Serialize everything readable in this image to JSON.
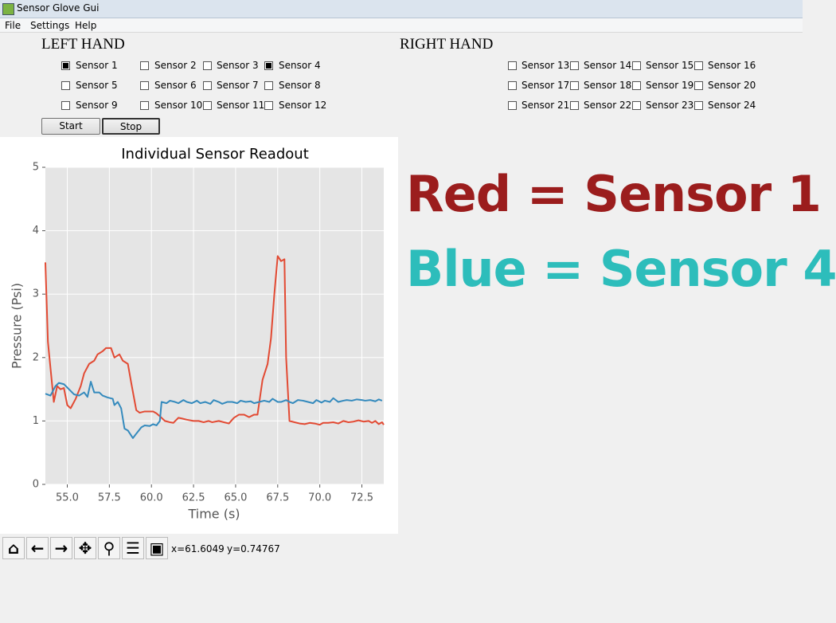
{
  "window": {
    "title": "Sensor Glove Gui"
  },
  "menu": [
    "File",
    "Settings",
    "Help"
  ],
  "left_hand": {
    "title": "LEFT HAND",
    "sensors": [
      {
        "label": "Sensor 1",
        "checked": true
      },
      {
        "label": "Sensor 2",
        "checked": false
      },
      {
        "label": "Sensor 3",
        "checked": false
      },
      {
        "label": "Sensor 4",
        "checked": true
      },
      {
        "label": "Sensor 5",
        "checked": false
      },
      {
        "label": "Sensor 6",
        "checked": false
      },
      {
        "label": "Sensor 7",
        "checked": false
      },
      {
        "label": "Sensor 8",
        "checked": false
      },
      {
        "label": "Sensor 9",
        "checked": false
      },
      {
        "label": "Sensor 10",
        "checked": false
      },
      {
        "label": "Sensor 11",
        "checked": false
      },
      {
        "label": "Sensor 12",
        "checked": false
      }
    ]
  },
  "right_hand": {
    "title": "RIGHT HAND",
    "sensors": [
      {
        "label": "Sensor 13",
        "checked": false
      },
      {
        "label": "Sensor 14",
        "checked": false
      },
      {
        "label": "Sensor 15",
        "checked": false
      },
      {
        "label": "Sensor 16",
        "checked": false
      },
      {
        "label": "Sensor 17",
        "checked": false
      },
      {
        "label": "Sensor 18",
        "checked": false
      },
      {
        "label": "Sensor 19",
        "checked": false
      },
      {
        "label": "Sensor 20",
        "checked": false
      },
      {
        "label": "Sensor 21",
        "checked": false
      },
      {
        "label": "Sensor 22",
        "checked": false
      },
      {
        "label": "Sensor 23",
        "checked": false
      },
      {
        "label": "Sensor 24",
        "checked": false
      }
    ]
  },
  "buttons": [
    "Start",
    "Stop"
  ],
  "annotations": [
    {
      "text": "Red = Sensor 1",
      "color": "#9b1d1d"
    },
    {
      "text": "Blue = Sensor 4",
      "color": "#2dbdbb"
    }
  ],
  "status": {
    "x": "x=61.6049",
    "y": "y=0.74767"
  },
  "chart_data": {
    "type": "line",
    "title": "Individual Sensor Readout",
    "x_label": "Time (s)",
    "y_label": "Pressure (Psi)",
    "xlim": [
      53.7,
      73.8
    ],
    "ylim": [
      0,
      5
    ],
    "xticks": [
      {
        "value": 55,
        "label": "55.0"
      },
      {
        "value": 57.5,
        "label": "57.5"
      },
      {
        "value": 60,
        "label": "60.0"
      },
      {
        "value": 62.5,
        "label": "62.5"
      },
      {
        "value": 65,
        "label": "65.0"
      },
      {
        "value": 67.5,
        "label": "67.5"
      },
      {
        "value": 70,
        "label": "70.0"
      },
      {
        "value": 72.5,
        "label": "72.5"
      }
    ],
    "yticks": [
      0,
      1,
      2,
      3,
      4,
      5
    ],
    "grid": true,
    "series": [
      {
        "color": "#e24a33",
        "x": [
          53.7,
          53.85,
          54.2,
          54.4,
          54.6,
          54.8,
          55.0,
          55.2,
          55.5,
          55.8,
          56.0,
          56.3,
          56.6,
          56.8,
          57.1,
          57.3,
          57.6,
          57.8,
          58.1,
          58.3,
          58.6,
          58.8,
          59.1,
          59.3,
          59.6,
          59.8,
          60.1,
          60.3,
          60.6,
          60.8,
          61.1,
          61.3,
          61.6,
          61.8,
          62.1,
          62.5,
          62.8,
          63.1,
          63.4,
          63.6,
          64.0,
          64.3,
          64.6,
          64.9,
          65.2,
          65.5,
          65.8,
          66.1,
          66.3,
          66.6,
          66.9,
          67.1,
          67.3,
          67.5,
          67.7,
          67.9,
          68.0,
          68.2,
          68.5,
          68.8,
          69.1,
          69.4,
          69.7,
          70.0,
          70.2,
          70.5,
          70.8,
          71.1,
          71.4,
          71.7,
          72.0,
          72.3,
          72.6,
          72.9,
          73.1,
          73.3,
          73.5,
          73.7,
          73.8
        ],
        "values": [
          3.5,
          2.25,
          1.3,
          1.55,
          1.5,
          1.52,
          1.25,
          1.2,
          1.35,
          1.55,
          1.75,
          1.9,
          1.95,
          2.05,
          2.1,
          2.15,
          2.15,
          2.0,
          2.05,
          1.95,
          1.9,
          1.6,
          1.17,
          1.13,
          1.15,
          1.15,
          1.15,
          1.12,
          1.05,
          1.0,
          0.98,
          0.97,
          1.05,
          1.04,
          1.02,
          1.0,
          1.0,
          0.98,
          1.0,
          0.98,
          1.0,
          0.98,
          0.96,
          1.05,
          1.1,
          1.1,
          1.06,
          1.1,
          1.1,
          1.65,
          1.9,
          2.3,
          3.0,
          3.6,
          3.52,
          3.55,
          2.0,
          1.0,
          0.98,
          0.96,
          0.95,
          0.97,
          0.96,
          0.94,
          0.97,
          0.97,
          0.98,
          0.96,
          1.0,
          0.98,
          0.99,
          1.01,
          0.99,
          1.0,
          0.97,
          1.0,
          0.95,
          0.98,
          0.94
        ]
      },
      {
        "color": "#348abd",
        "x": [
          53.7,
          54.0,
          54.3,
          54.5,
          54.8,
          55.1,
          55.4,
          55.7,
          56.0,
          56.2,
          56.4,
          56.6,
          56.9,
          57.1,
          57.4,
          57.7,
          57.8,
          58.0,
          58.2,
          58.4,
          58.6,
          58.9,
          59.1,
          59.4,
          59.6,
          59.9,
          60.1,
          60.3,
          60.5,
          60.6,
          60.9,
          61.1,
          61.4,
          61.6,
          61.9,
          62.1,
          62.4,
          62.7,
          62.9,
          63.2,
          63.5,
          63.7,
          64.0,
          64.2,
          64.5,
          64.8,
          65.1,
          65.3,
          65.6,
          65.9,
          66.1,
          66.4,
          66.7,
          67.0,
          67.2,
          67.5,
          67.7,
          68.0,
          68.2,
          68.4,
          68.7,
          69.0,
          69.3,
          69.6,
          69.8,
          70.1,
          70.3,
          70.6,
          70.8,
          71.1,
          71.4,
          71.6,
          71.9,
          72.2,
          72.5,
          72.7,
          73.0,
          73.3,
          73.5,
          73.7
        ],
        "values": [
          1.43,
          1.4,
          1.55,
          1.6,
          1.58,
          1.5,
          1.42,
          1.4,
          1.45,
          1.38,
          1.62,
          1.45,
          1.45,
          1.4,
          1.37,
          1.35,
          1.25,
          1.3,
          1.2,
          0.88,
          0.85,
          0.73,
          0.8,
          0.9,
          0.93,
          0.92,
          0.95,
          0.93,
          1.0,
          1.3,
          1.28,
          1.32,
          1.3,
          1.28,
          1.33,
          1.3,
          1.28,
          1.32,
          1.28,
          1.3,
          1.27,
          1.33,
          1.3,
          1.27,
          1.3,
          1.3,
          1.28,
          1.32,
          1.3,
          1.31,
          1.28,
          1.3,
          1.32,
          1.3,
          1.35,
          1.3,
          1.3,
          1.33,
          1.3,
          1.28,
          1.33,
          1.32,
          1.3,
          1.28,
          1.33,
          1.29,
          1.32,
          1.3,
          1.36,
          1.3,
          1.32,
          1.33,
          1.32,
          1.34,
          1.33,
          1.32,
          1.33,
          1.31,
          1.34,
          1.32
        ]
      }
    ]
  }
}
